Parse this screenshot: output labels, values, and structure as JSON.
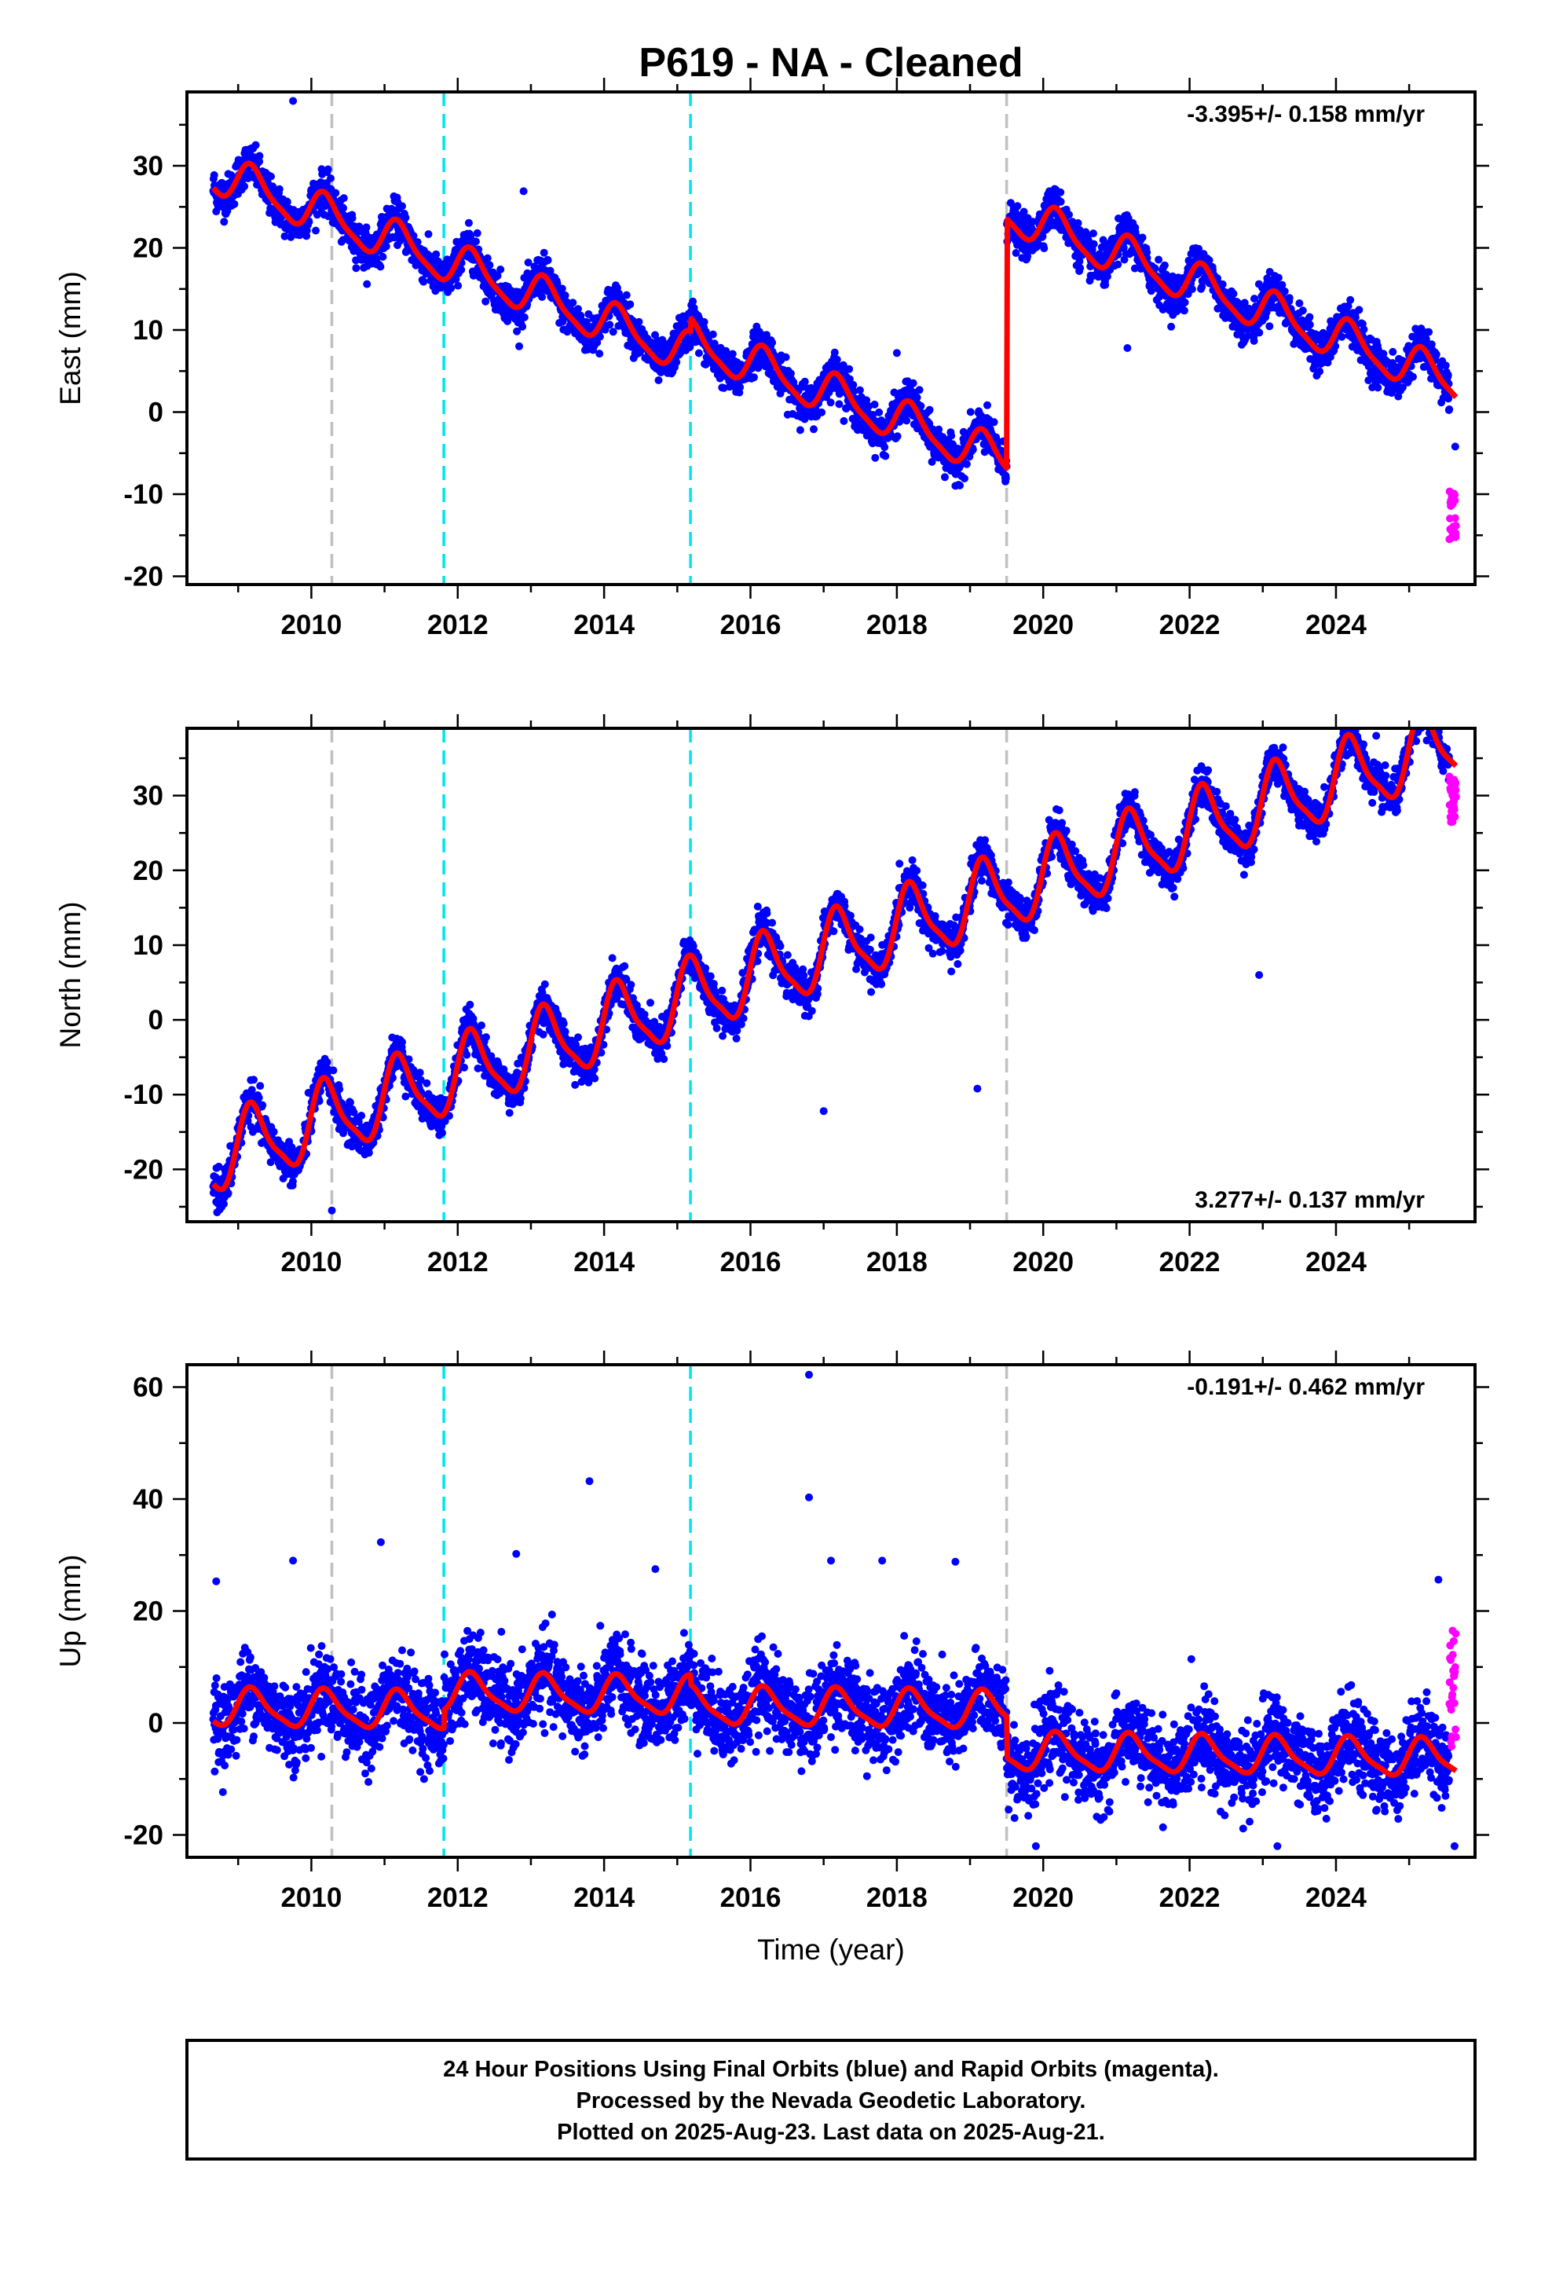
{
  "title": "P619  - NA - Cleaned",
  "colors": {
    "final": "#0000ff",
    "rapid": "#ff00ff",
    "model": "#ff0000",
    "event_gray": "#c0c0c0",
    "event_cyan": "#00e5ee"
  },
  "footer": {
    "line1": "24 Hour Positions Using Final Orbits (blue) and Rapid Orbits (magenta).",
    "line2": "Processed by the Nevada Geodetic Laboratory.",
    "line3": "Plotted on 2025-Aug-23. Last data on 2025-Aug-21."
  },
  "chart_data": [
    {
      "type": "scatter",
      "component": "East",
      "ylabel": "East (mm)",
      "xlabel": "",
      "rate_label": "-3.395+/- 0.158 mm/yr",
      "rate_position": "top-right",
      "xlim": [
        2008.3,
        2025.9
      ],
      "ylim": [
        -21,
        39
      ],
      "xticks": [
        2010,
        2012,
        2014,
        2016,
        2018,
        2020,
        2022,
        2024
      ],
      "yticks": [
        -20,
        -10,
        0,
        10,
        20,
        30
      ],
      "trend": {
        "start": 2008.66,
        "end": 2025.64,
        "slope_mm_per_yr": -3.395
      },
      "seasonal_amplitude": 2.4,
      "noise_sd": 1.2,
      "segment_offsets": [
        {
          "from": 2008.66,
          "value": 29.1
        },
        {
          "from": 2015.18,
          "value": 8.6
        },
        {
          "from": 2019.5,
          "value": 24.3
        }
      ],
      "events": [
        {
          "x": 2010.28,
          "color": "gray"
        },
        {
          "x": 2011.81,
          "color": "cyan"
        },
        {
          "x": 2015.18,
          "color": "cyan"
        },
        {
          "x": 2019.5,
          "color": "gray"
        }
      ],
      "outliers": [
        [
          2009.75,
          37.9
        ],
        [
          2012.9,
          26.9
        ],
        [
          2018.0,
          7.2
        ],
        [
          2021.15,
          7.8
        ],
        [
          2025.63,
          -4.2
        ]
      ],
      "rapid": {
        "start": 2025.55,
        "end": 2025.64,
        "count": 26,
        "center": -12.5,
        "spread": 3.0
      }
    },
    {
      "type": "scatter",
      "component": "North",
      "ylabel": "North (mm)",
      "xlabel": "",
      "rate_label": "3.277+/- 0.137 mm/yr",
      "rate_position": "bottom-right",
      "xlim": [
        2008.3,
        2025.9
      ],
      "ylim": [
        -27,
        39
      ],
      "xticks": [
        2010,
        2012,
        2014,
        2016,
        2018,
        2020,
        2022,
        2024
      ],
      "yticks": [
        -20,
        -10,
        0,
        10,
        20,
        30
      ],
      "trend": {
        "start": 2008.66,
        "end": 2025.64,
        "slope_mm_per_yr": 3.277
      },
      "seasonal_amplitude": 4.8,
      "noise_sd": 1.3,
      "segment_offsets": [
        {
          "from": 2008.66,
          "value": -18.4
        }
      ],
      "events": [
        {
          "x": 2010.28,
          "color": "gray"
        },
        {
          "x": 2011.81,
          "color": "cyan"
        },
        {
          "x": 2015.18,
          "color": "cyan"
        },
        {
          "x": 2019.5,
          "color": "gray"
        }
      ],
      "outliers": [
        [
          2010.28,
          -25.5
        ],
        [
          2017.0,
          -12.2
        ],
        [
          2019.1,
          -9.2
        ],
        [
          2022.95,
          6.0
        ],
        [
          2024.55,
          38.0
        ]
      ],
      "rapid": {
        "start": 2025.55,
        "end": 2025.64,
        "count": 26,
        "center": 29.5,
        "spread": 3.2
      }
    },
    {
      "type": "scatter",
      "component": "Up",
      "ylabel": "Up (mm)",
      "xlabel": "Time (year)",
      "rate_label": "-0.191+/- 0.462 mm/yr",
      "rate_position": "top-right",
      "xlim": [
        2008.3,
        2025.9
      ],
      "ylim": [
        -24,
        64
      ],
      "xticks": [
        2010,
        2012,
        2014,
        2016,
        2018,
        2020,
        2022,
        2024
      ],
      "yticks": [
        -20,
        0,
        20,
        40,
        60
      ],
      "trend": {
        "start": 2008.66,
        "end": 2025.64,
        "slope_mm_per_yr": -0.191
      },
      "seasonal_amplitude": 3.2,
      "noise_sd": 3.6,
      "segment_offsets": [
        {
          "from": 2008.66,
          "value": 2.7
        },
        {
          "from": 2011.81,
          "value": 5.4
        },
        {
          "from": 2015.18,
          "value": 3.0
        },
        {
          "from": 2019.5,
          "value": -5.2
        }
      ],
      "events": [
        {
          "x": 2010.28,
          "color": "gray"
        },
        {
          "x": 2011.81,
          "color": "cyan"
        },
        {
          "x": 2015.18,
          "color": "cyan"
        },
        {
          "x": 2019.5,
          "color": "gray"
        }
      ],
      "outliers": [
        [
          2008.7,
          25.3
        ],
        [
          2009.75,
          29.0
        ],
        [
          2010.95,
          32.3
        ],
        [
          2012.8,
          30.2
        ],
        [
          2013.8,
          43.2
        ],
        [
          2014.7,
          27.5
        ],
        [
          2016.8,
          62.2
        ],
        [
          2016.8,
          40.3
        ],
        [
          2017.1,
          29.0
        ],
        [
          2017.8,
          29.0
        ],
        [
          2018.8,
          28.8
        ],
        [
          2019.9,
          -22.0
        ],
        [
          2023.2,
          -22.0
        ],
        [
          2025.4,
          25.6
        ],
        [
          2025.62,
          -22.0
        ]
      ],
      "rapid": {
        "start": 2025.55,
        "end": 2025.64,
        "count": 26,
        "center": 5.5,
        "spread": 11.0
      }
    }
  ]
}
